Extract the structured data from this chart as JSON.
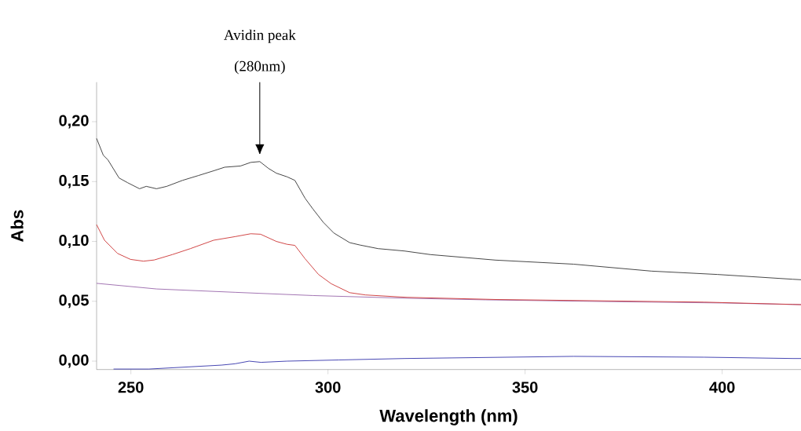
{
  "chart_data": {
    "type": "line",
    "xlabel": "Wavelength (nm)",
    "ylabel": "Abs",
    "annotations": [
      "Avidin peak",
      "(280nm)"
    ],
    "xlim": [
      241.3,
      420
    ],
    "ylim": [
      -0.007,
      0.233
    ],
    "xticks": [
      250,
      300,
      350,
      400
    ],
    "yticks": [
      {
        "value": 0,
        "label": "0,00"
      },
      {
        "value": 0.05,
        "label": "0,05"
      },
      {
        "value": 0.1,
        "label": "0,10"
      },
      {
        "value": 0.15,
        "label": "0,15"
      },
      {
        "value": 0.2,
        "label": "0,20"
      }
    ],
    "series": [
      {
        "color": "#333333",
        "x": [
          241.3,
          243,
          244.2,
          247,
          249.2,
          252.2,
          253.9,
          256.5,
          259.1,
          263.1,
          267.1,
          271,
          273.8,
          277.8,
          280.4,
          282.7,
          284.9,
          286.9,
          289.6,
          291.6,
          294.2,
          296.2,
          298.8,
          301.5,
          305.5,
          308.1,
          312.7,
          319.4,
          326,
          342.5,
          362.3,
          382.1,
          398.8,
          417.9,
          420
        ],
        "values": [
          0.186,
          0.172,
          0.168,
          0.153,
          0.149,
          0.144,
          0.146,
          0.144,
          0.146,
          0.151,
          0.155,
          0.159,
          0.162,
          0.163,
          0.166,
          0.1667,
          0.161,
          0.157,
          0.154,
          0.151,
          0.136,
          0.127,
          0.116,
          0.107,
          0.099,
          0.097,
          0.094,
          0.092,
          0.089,
          0.0844,
          0.081,
          0.0752,
          0.0724,
          0.0684,
          0.068
        ]
      },
      {
        "color": "#9966aa",
        "x": [
          241.3,
          256.5,
          276.4,
          296.2,
          319.4,
          340,
          370,
          400,
          420
        ],
        "values": [
          0.065,
          0.0603,
          0.0575,
          0.0548,
          0.0526,
          0.0512,
          0.0498,
          0.0486,
          0.0472
        ]
      },
      {
        "color": "#cc3333",
        "x": [
          241.3,
          243.3,
          246.6,
          249.9,
          253.2,
          255.9,
          260.5,
          265.1,
          271,
          276.4,
          280.4,
          282.9,
          286.9,
          289.6,
          291.6,
          294.2,
          297.6,
          300.8,
          305.5,
          309.5,
          320,
          342.5,
          369,
          395.4,
          417.9,
          420
        ],
        "values": [
          0.114,
          0.101,
          0.09,
          0.085,
          0.0835,
          0.0845,
          0.089,
          0.094,
          0.101,
          0.104,
          0.1064,
          0.106,
          0.1,
          0.0976,
          0.0967,
          0.0855,
          0.0724,
          0.0647,
          0.0572,
          0.0553,
          0.0533,
          0.0515,
          0.0504,
          0.0493,
          0.0474,
          0.0472
        ]
      },
      {
        "color": "#3333aa",
        "x": [
          245.6,
          254.6,
          273,
          276.4,
          280,
          283,
          289.6,
          302.8,
          319.4,
          362.3,
          395.4,
          418,
          420
        ],
        "values": [
          -0.0066,
          -0.0066,
          -0.0033,
          -0.0022,
          0,
          -0.001,
          0,
          0.001,
          0.0022,
          0.004,
          0.0033,
          0.0022,
          0.0022
        ]
      }
    ]
  }
}
